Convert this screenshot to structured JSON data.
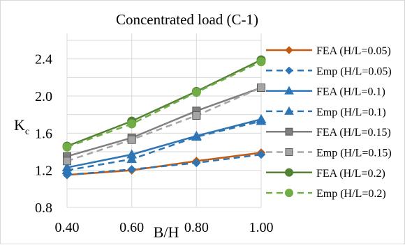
{
  "chart_data": {
    "type": "line",
    "title": "Concentrated load (C-1)",
    "xlabel": "B/H",
    "ylabel": "K",
    "ylabel_sub": "c",
    "x": [
      0.4,
      0.6,
      0.8,
      1.0
    ],
    "x_tick_labels": [
      "0.40",
      "0.60",
      "0.80",
      "1.00"
    ],
    "y_tick_labels": [
      "0.8",
      "1.2",
      "1.6",
      "2.0",
      "2.4"
    ],
    "xlim": [
      0.4,
      1.0
    ],
    "ylim": [
      0.8,
      2.6
    ],
    "grid": true,
    "legend_position": "right",
    "series": [
      {
        "name": "FEA (H/L=0.05)",
        "values": [
          1.15,
          1.2,
          1.3,
          1.39
        ],
        "color": "#c55a11",
        "dash": false,
        "marker": "diamond"
      },
      {
        "name": "Emp (H/L=0.05)",
        "values": [
          1.15,
          1.21,
          1.28,
          1.37
        ],
        "color": "#2e75b6",
        "dash": true,
        "marker": "diamond"
      },
      {
        "name": "FEA (H/L=0.1)",
        "values": [
          1.23,
          1.37,
          1.57,
          1.75
        ],
        "color": "#2e75b6",
        "dash": false,
        "marker": "triangle"
      },
      {
        "name": "Emp (H/L=0.1)",
        "values": [
          1.2,
          1.32,
          1.56,
          1.73
        ],
        "color": "#2e75b6",
        "dash": true,
        "marker": "triangle"
      },
      {
        "name": "FEA (H/L=0.15)",
        "values": [
          1.35,
          1.55,
          1.84,
          2.09
        ],
        "color": "#7f7f7f",
        "dash": false,
        "marker": "square"
      },
      {
        "name": "Emp (H/L=0.15)",
        "values": [
          1.3,
          1.53,
          1.79,
          2.09
        ],
        "color": "#a5a5a5",
        "dash": true,
        "marker": "square"
      },
      {
        "name": "FEA (H/L=0.2)",
        "values": [
          1.46,
          1.73,
          2.05,
          2.39
        ],
        "color": "#548235",
        "dash": false,
        "marker": "circle"
      },
      {
        "name": "Emp (H/L=0.2)",
        "values": [
          1.45,
          1.7,
          2.04,
          2.37
        ],
        "color": "#70ad47",
        "dash": true,
        "marker": "circle"
      }
    ]
  }
}
